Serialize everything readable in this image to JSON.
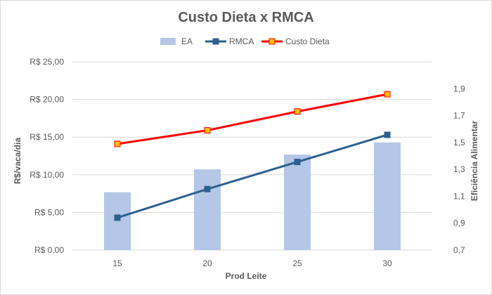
{
  "chart_data": {
    "type": "bar",
    "title": "Custo Dieta x RMCA",
    "xlabel": "Prod Leite",
    "ylabel": "R$/vaca/dia",
    "y2label": "Eficiência Alimentar",
    "categories": [
      "15",
      "20",
      "25",
      "30"
    ],
    "y_ticks": [
      "R$ 0,00",
      "R$ 5,00",
      "R$ 10,00",
      "R$ 15,00",
      "R$ 20,00",
      "R$ 25,00"
    ],
    "y_tick_values": [
      0,
      5,
      10,
      15,
      20,
      25
    ],
    "ylim": [
      0,
      25
    ],
    "y2_ticks": [
      "0,7",
      "0,9",
      "1,1",
      "1,3",
      "1,5",
      "1,7",
      "1,9"
    ],
    "y2_tick_values": [
      0.7,
      0.9,
      1.1,
      1.3,
      1.5,
      1.7,
      1.9
    ],
    "y2lim": [
      0.7,
      2.1
    ],
    "grid": true,
    "legend_position": "top",
    "series": [
      {
        "name": "EA",
        "type": "bar",
        "axis": "right",
        "values": [
          1.13,
          1.3,
          1.41,
          1.5
        ],
        "color": "#b4c7e7"
      },
      {
        "name": "RMCA",
        "type": "line",
        "axis": "left",
        "values": [
          4.3,
          8.1,
          11.7,
          15.3
        ],
        "color": "#2e5f8f",
        "marker_fill": "#2e5f8f",
        "marker_stroke": "#2e5f8f"
      },
      {
        "name": "Custo Dieta",
        "type": "line",
        "axis": "left",
        "values": [
          14.1,
          15.9,
          18.4,
          20.7
        ],
        "color": "#ff0000",
        "marker_fill": "#ffc000",
        "marker_stroke": "#ff0000"
      }
    ]
  }
}
